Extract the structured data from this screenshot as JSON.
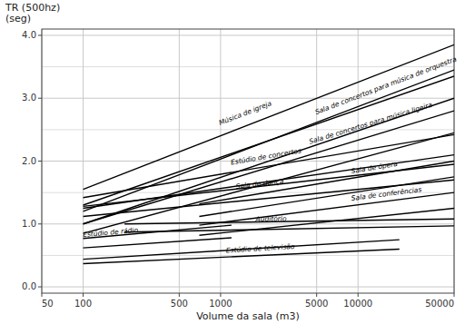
{
  "chart_data": {
    "type": "line",
    "xlabel": "Volume da sala (m3)",
    "ylabel": [
      "TR (500hz)",
      "(seg)"
    ],
    "log": "x",
    "grid": true,
    "xlim": [
      50,
      50000
    ],
    "ylim": [
      -0.1,
      4.1
    ],
    "xticks": [
      50,
      100,
      500,
      1000,
      5000,
      10000,
      50000
    ],
    "yticks": [
      {
        "value": 0,
        "label": "0.0"
      },
      {
        "value": 1,
        "label": "1.0"
      },
      {
        "value": 2,
        "label": "2.0"
      },
      {
        "value": 3,
        "label": "3.0"
      },
      {
        "value": 4,
        "label": "4.0"
      }
    ],
    "yticks_minor": [
      0.5,
      1.5,
      2.5,
      3.5
    ],
    "color": "#000000",
    "series": [
      {
        "name": "Música de igreja",
        "x": [
          100,
          50000
        ],
        "upper": [
          1.55,
          3.85
        ],
        "lower": [
          1.3,
          3.35
        ],
        "label_x": 1000,
        "label_y": 2.55
      },
      {
        "name": "Sala de concertos para música de orquestra",
        "x": [
          100,
          50000
        ],
        "upper": [
          1.2,
          3.45
        ],
        "lower": [
          1.0,
          3.0
        ],
        "label_x": 5000,
        "label_y": 2.72
      },
      {
        "name": "Sala de concertos para música ligeira",
        "x": [
          100,
          50000
        ],
        "upper": [
          1.0,
          2.8
        ],
        "lower": [
          0.85,
          2.45
        ],
        "label_x": 4500,
        "label_y": 2.25
      },
      {
        "name": "Estúdio de concertos",
        "x": [
          100,
          50000
        ],
        "upper": [
          1.42,
          2.42
        ],
        "lower": [
          1.25,
          2.1
        ],
        "label_x": 1200,
        "label_y": 1.92
      },
      {
        "name": "Sala de dança",
        "x": [
          100,
          50000
        ],
        "upper": [
          1.28,
          1.95
        ],
        "lower": [
          1.12,
          1.7
        ],
        "label_x": 1300,
        "label_y": 1.54
      },
      {
        "name": "Sala de ópera",
        "x": [
          700,
          50000
        ],
        "upper": [
          1.32,
          2.0
        ],
        "lower": [
          1.12,
          1.75
        ],
        "label_x": 9000,
        "label_y": 1.78
      },
      {
        "name": "Sala de conferências",
        "x": [
          700,
          50000
        ],
        "upper": [
          0.98,
          1.5
        ],
        "lower": [
          0.82,
          1.25
        ],
        "label_x": 9000,
        "label_y": 1.35
      },
      {
        "name": "Auditório",
        "x": [
          200,
          50000
        ],
        "upper": [
          1.0,
          1.08
        ],
        "lower": [
          0.87,
          0.97
        ],
        "label_x": 1800,
        "label_y": 1.02
      },
      {
        "name": "Estúdio de rádio",
        "x": [
          100,
          1200
        ],
        "upper": [
          0.77,
          0.98
        ],
        "lower": [
          0.62,
          0.78
        ],
        "label_x": 100,
        "label_y": 0.77
      },
      {
        "name": "Estúdio de televisão",
        "x": [
          100,
          20000
        ],
        "upper": [
          0.44,
          0.75
        ],
        "lower": [
          0.37,
          0.6
        ],
        "label_x": 1100,
        "label_y": 0.52
      }
    ]
  }
}
